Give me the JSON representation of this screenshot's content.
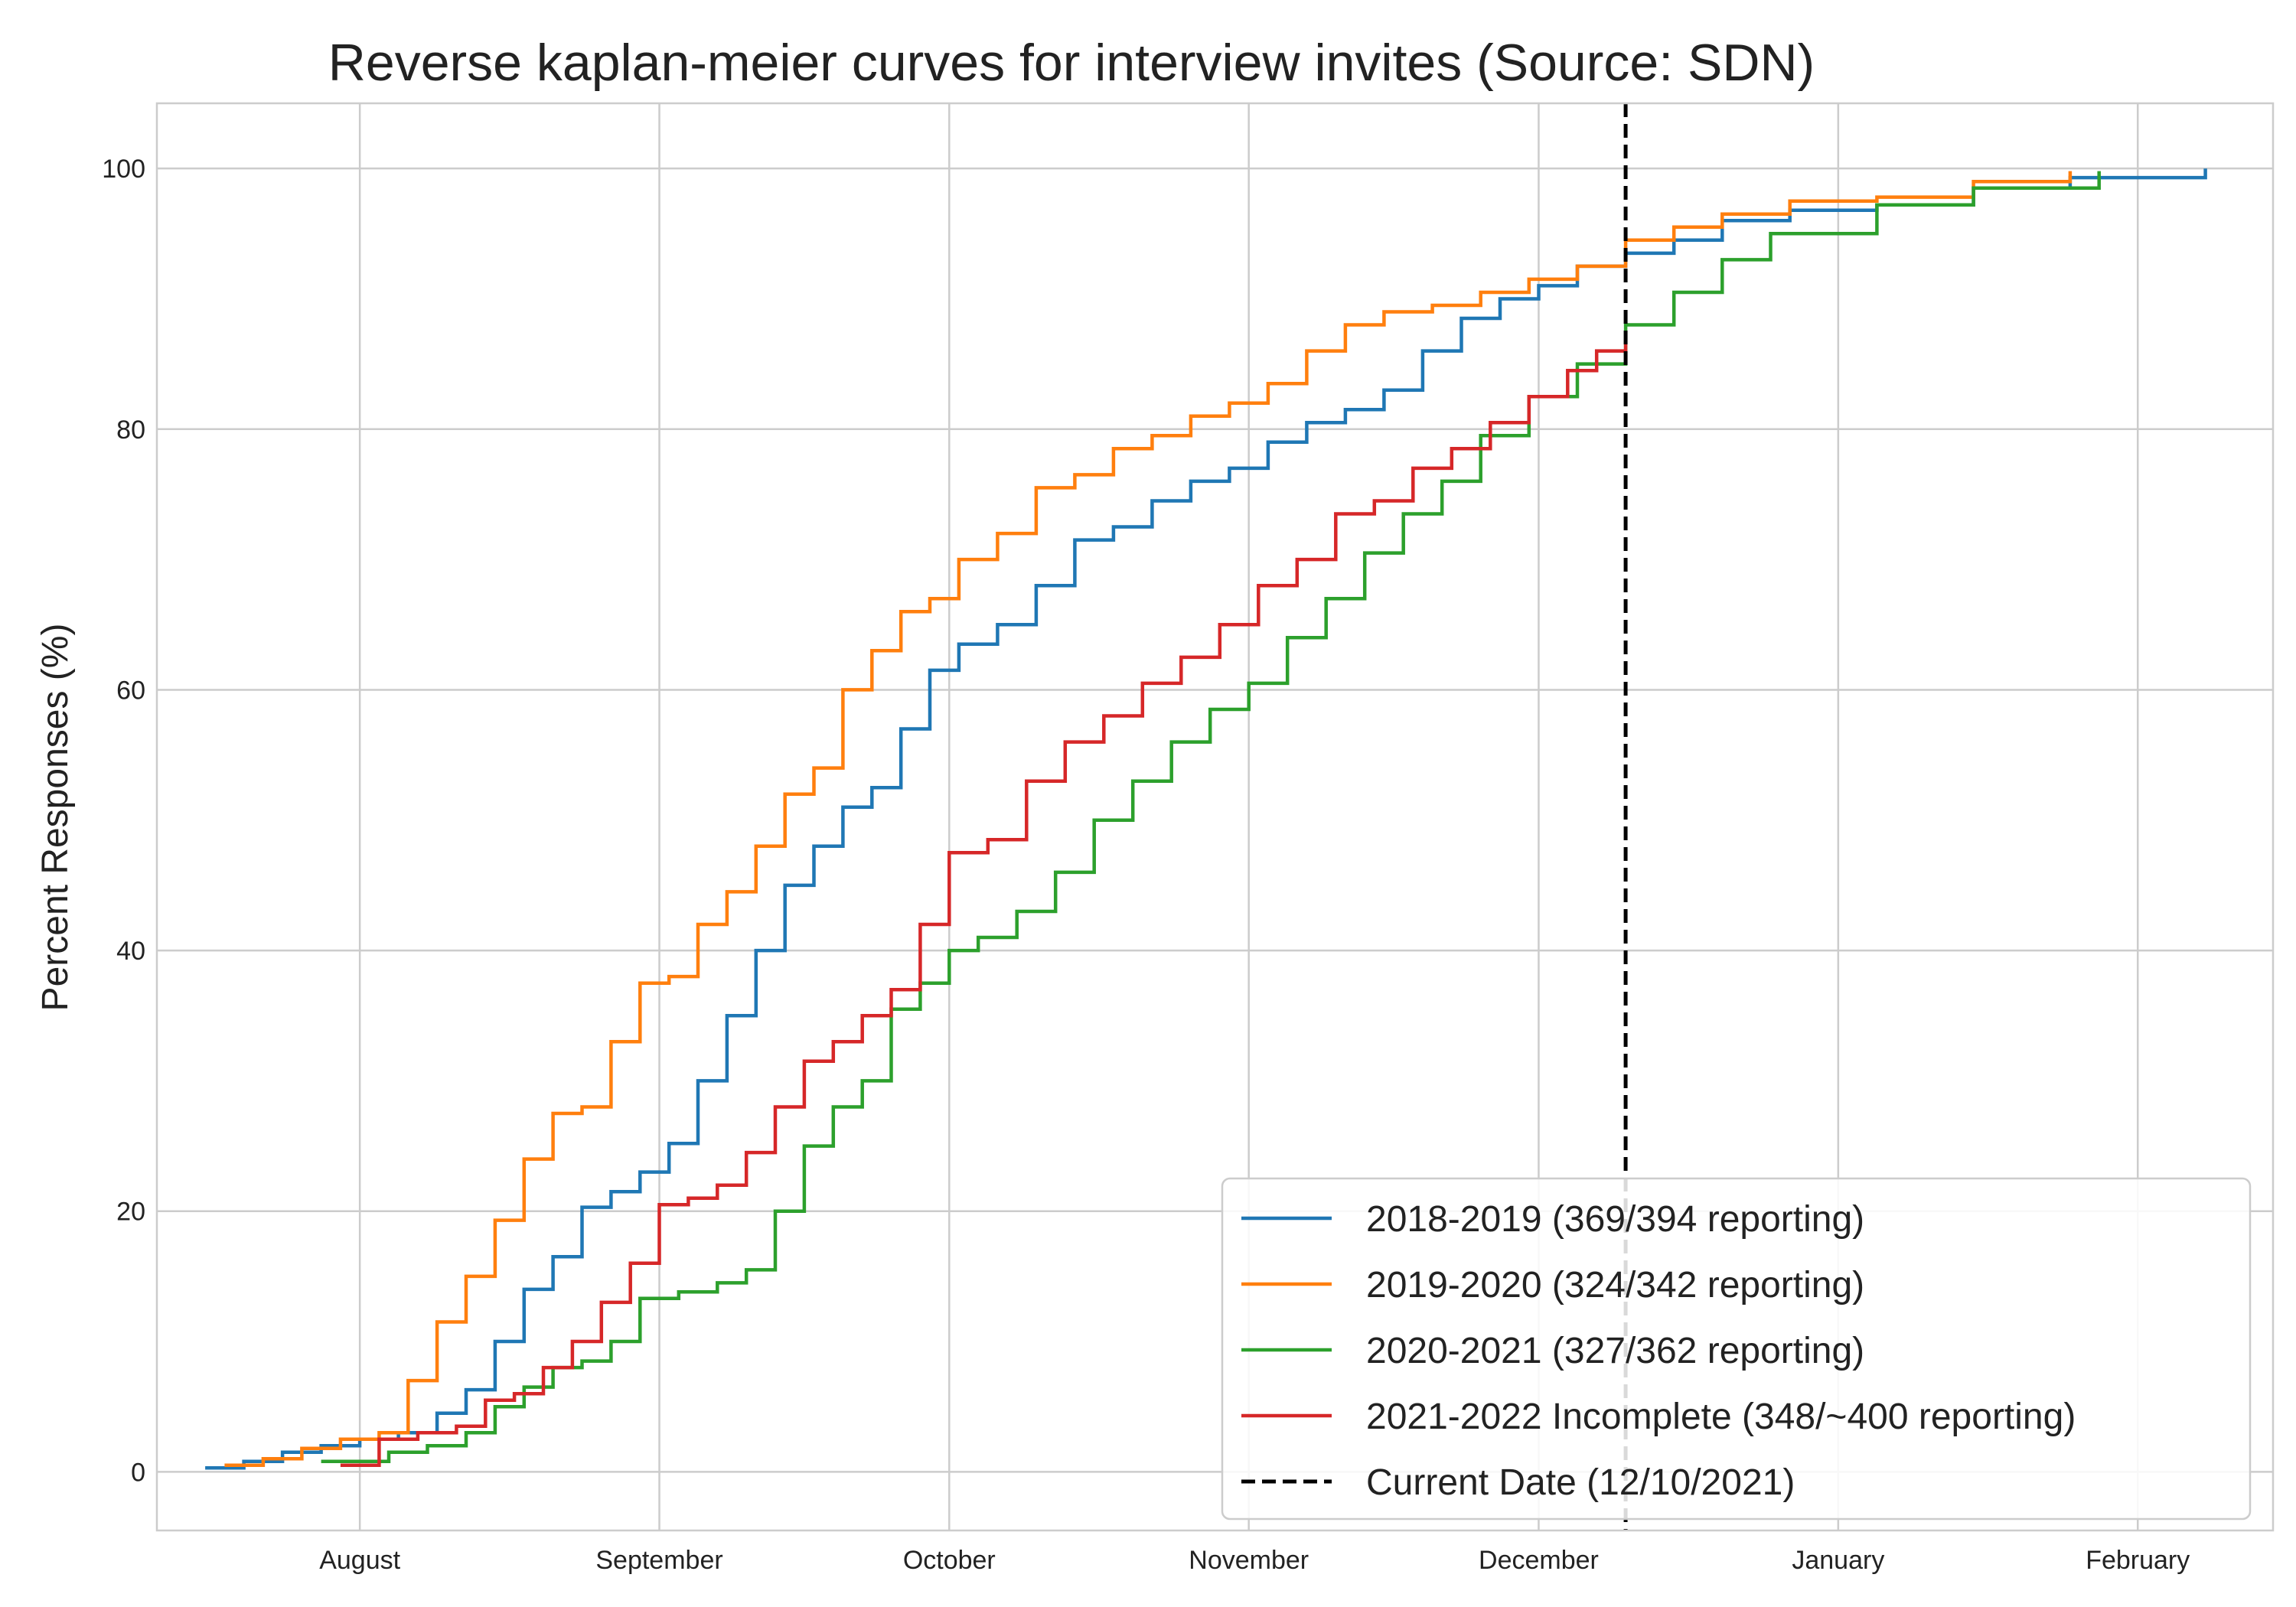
{
  "chart_data": {
    "type": "line",
    "title": "Reverse kaplan-meier curves for interview invites (Source: SDN)",
    "xlabel": "",
    "ylabel": "Percent Responses (%)",
    "x_ticks": [
      {
        "label": "August",
        "date": "2021-08-01"
      },
      {
        "label": "September",
        "date": "2021-09-01"
      },
      {
        "label": "October",
        "date": "2021-10-01"
      },
      {
        "label": "November",
        "date": "2021-11-01"
      },
      {
        "label": "December",
        "date": "2021-12-01"
      },
      {
        "label": "January",
        "date": "2022-01-01"
      },
      {
        "label": "February",
        "date": "2022-02-01"
      }
    ],
    "y_ticks": [
      0,
      20,
      40,
      60,
      80,
      100
    ],
    "xlim": [
      "2021-07-11",
      "2022-02-15"
    ],
    "ylim": [
      -4.5,
      105
    ],
    "grid": true,
    "legend_position": "lower-right",
    "step": true,
    "series": [
      {
        "name": "2018-2019 (369/394 reporting)",
        "color": "#1f77b4",
        "x": [
          "2021-07-16",
          "2021-07-20",
          "2021-07-24",
          "2021-07-28",
          "2021-08-01",
          "2021-08-05",
          "2021-08-09",
          "2021-08-12",
          "2021-08-15",
          "2021-08-18",
          "2021-08-21",
          "2021-08-24",
          "2021-08-27",
          "2021-08-30",
          "2021-09-02",
          "2021-09-05",
          "2021-09-08",
          "2021-09-11",
          "2021-09-14",
          "2021-09-17",
          "2021-09-20",
          "2021-09-23",
          "2021-09-26",
          "2021-09-29",
          "2021-10-02",
          "2021-10-06",
          "2021-10-10",
          "2021-10-14",
          "2021-10-18",
          "2021-10-22",
          "2021-10-26",
          "2021-10-30",
          "2021-11-03",
          "2021-11-07",
          "2021-11-11",
          "2021-11-15",
          "2021-11-19",
          "2021-11-23",
          "2021-11-27",
          "2021-12-01",
          "2021-12-05",
          "2021-12-10",
          "2021-12-15",
          "2021-12-20",
          "2021-12-27",
          "2022-01-05",
          "2022-01-15",
          "2022-01-25",
          "2022-02-08"
        ],
        "y": [
          0.3,
          0.8,
          1.5,
          2.0,
          2.5,
          3.0,
          4.5,
          6.3,
          10.0,
          14.0,
          16.5,
          20.3,
          21.5,
          23.0,
          25.2,
          30.0,
          35.0,
          40.0,
          45.0,
          48.0,
          51.0,
          52.5,
          57.0,
          61.5,
          63.5,
          65.0,
          68.0,
          71.5,
          72.5,
          74.5,
          76.0,
          77.0,
          79.0,
          80.5,
          81.5,
          83.0,
          86.0,
          88.5,
          90.0,
          91.0,
          92.5,
          93.5,
          94.5,
          96.0,
          96.8,
          97.2,
          98.5,
          99.3,
          100.0
        ]
      },
      {
        "name": "2019-2020 (324/342 reporting)",
        "color": "#ff7f0e",
        "x": [
          "2021-07-18",
          "2021-07-22",
          "2021-07-26",
          "2021-07-30",
          "2021-08-03",
          "2021-08-06",
          "2021-08-09",
          "2021-08-12",
          "2021-08-15",
          "2021-08-18",
          "2021-08-21",
          "2021-08-24",
          "2021-08-27",
          "2021-08-30",
          "2021-09-02",
          "2021-09-05",
          "2021-09-08",
          "2021-09-11",
          "2021-09-14",
          "2021-09-17",
          "2021-09-20",
          "2021-09-23",
          "2021-09-26",
          "2021-09-29",
          "2021-10-02",
          "2021-10-06",
          "2021-10-10",
          "2021-10-14",
          "2021-10-18",
          "2021-10-22",
          "2021-10-26",
          "2021-10-30",
          "2021-11-03",
          "2021-11-07",
          "2021-11-11",
          "2021-11-15",
          "2021-11-20",
          "2021-11-25",
          "2021-11-30",
          "2021-12-05",
          "2021-12-10",
          "2021-12-15",
          "2021-12-20",
          "2021-12-27",
          "2022-01-05",
          "2022-01-15",
          "2022-01-25"
        ],
        "y": [
          0.5,
          1.0,
          1.8,
          2.5,
          3.0,
          7.0,
          11.5,
          15.0,
          19.3,
          24.0,
          27.5,
          28.0,
          33.0,
          37.5,
          38.0,
          42.0,
          44.5,
          48.0,
          52.0,
          54.0,
          60.0,
          63.0,
          66.0,
          67.0,
          70.0,
          72.0,
          75.5,
          76.5,
          78.5,
          79.5,
          81.0,
          82.0,
          83.5,
          86.0,
          88.0,
          89.0,
          89.5,
          90.5,
          91.5,
          92.5,
          94.5,
          95.5,
          96.5,
          97.5,
          97.8,
          99.0,
          99.8
        ]
      },
      {
        "name": "2020-2021 (327/362 reporting)",
        "color": "#2ca02c",
        "x": [
          "2021-07-28",
          "2021-08-04",
          "2021-08-08",
          "2021-08-12",
          "2021-08-15",
          "2021-08-18",
          "2021-08-21",
          "2021-08-24",
          "2021-08-27",
          "2021-08-30",
          "2021-09-03",
          "2021-09-07",
          "2021-09-10",
          "2021-09-13",
          "2021-09-16",
          "2021-09-19",
          "2021-09-22",
          "2021-09-25",
          "2021-09-28",
          "2021-10-01",
          "2021-10-04",
          "2021-10-08",
          "2021-10-12",
          "2021-10-16",
          "2021-10-20",
          "2021-10-24",
          "2021-10-28",
          "2021-11-01",
          "2021-11-05",
          "2021-11-09",
          "2021-11-13",
          "2021-11-17",
          "2021-11-21",
          "2021-11-25",
          "2021-11-30",
          "2021-12-05",
          "2021-12-10",
          "2021-12-15",
          "2021-12-20",
          "2021-12-25",
          "2022-01-05",
          "2022-01-15",
          "2022-01-28"
        ],
        "y": [
          0.8,
          1.5,
          2.0,
          3.0,
          5.0,
          6.5,
          8.0,
          8.5,
          10.0,
          13.3,
          13.8,
          14.5,
          15.5,
          20.0,
          25.0,
          28.0,
          30.0,
          35.5,
          37.5,
          40.0,
          41.0,
          43.0,
          46.0,
          50.0,
          53.0,
          56.0,
          58.5,
          60.5,
          64.0,
          67.0,
          70.5,
          73.5,
          76.0,
          79.5,
          82.5,
          85.0,
          88.0,
          90.5,
          93.0,
          95.0,
          97.2,
          98.5,
          99.8
        ]
      },
      {
        "name": "2021-2022 Incomplete (348/~400 reporting)",
        "color": "#d62728",
        "x": [
          "2021-07-30",
          "2021-08-03",
          "2021-08-07",
          "2021-08-11",
          "2021-08-14",
          "2021-08-17",
          "2021-08-20",
          "2021-08-23",
          "2021-08-26",
          "2021-08-29",
          "2021-09-01",
          "2021-09-04",
          "2021-09-07",
          "2021-09-10",
          "2021-09-13",
          "2021-09-16",
          "2021-09-19",
          "2021-09-22",
          "2021-09-25",
          "2021-09-28",
          "2021-10-01",
          "2021-10-05",
          "2021-10-09",
          "2021-10-13",
          "2021-10-17",
          "2021-10-21",
          "2021-10-25",
          "2021-10-29",
          "2021-11-02",
          "2021-11-06",
          "2021-11-10",
          "2021-11-14",
          "2021-11-18",
          "2021-11-22",
          "2021-11-26",
          "2021-11-30",
          "2021-12-04",
          "2021-12-07",
          "2021-12-10"
        ],
        "y": [
          0.5,
          2.5,
          3.0,
          3.5,
          5.5,
          6.0,
          8.0,
          10.0,
          13.0,
          16.0,
          20.5,
          21.0,
          22.0,
          24.5,
          28.0,
          31.5,
          33.0,
          35.0,
          37.0,
          42.0,
          47.5,
          48.5,
          53.0,
          56.0,
          58.0,
          60.5,
          62.5,
          65.0,
          68.0,
          70.0,
          73.5,
          74.5,
          77.0,
          78.5,
          80.5,
          82.5,
          84.5,
          86.0,
          86.8
        ]
      }
    ],
    "reference_line": {
      "name": "Current Date (12/10/2021)",
      "date": "2021-12-10",
      "color": "#000000",
      "style": "dashed"
    }
  }
}
